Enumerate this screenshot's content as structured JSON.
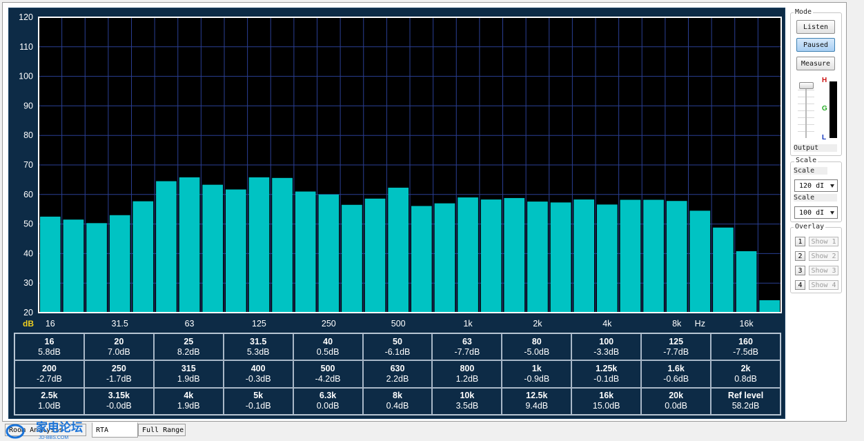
{
  "chart_data": {
    "type": "bar",
    "y_axis": {
      "min": 20,
      "max": 120,
      "ticks": [
        20,
        30,
        40,
        50,
        60,
        70,
        80,
        90,
        100,
        110,
        120
      ]
    },
    "y_unit": "dB",
    "x_unit": "Hz",
    "x_tick_labels": [
      {
        "label": "16",
        "band": 0
      },
      {
        "label": "31.5",
        "band": 3
      },
      {
        "label": "63",
        "band": 6
      },
      {
        "label": "125",
        "band": 9
      },
      {
        "label": "250",
        "band": 12
      },
      {
        "label": "500",
        "band": 15
      },
      {
        "label": "1k",
        "band": 18
      },
      {
        "label": "2k",
        "band": 21
      },
      {
        "label": "4k",
        "band": 24
      },
      {
        "label": "8k",
        "band": 27
      },
      {
        "label": "16k",
        "band": 30
      }
    ],
    "bands": [
      "16",
      "20",
      "25",
      "31.5",
      "40",
      "50",
      "63",
      "80",
      "100",
      "125",
      "160",
      "200",
      "250",
      "315",
      "400",
      "500",
      "630",
      "800",
      "1k",
      "1.25k",
      "1.6k",
      "2k",
      "2.5k",
      "3.15k",
      "4k",
      "5k",
      "6.3k",
      "8k",
      "10k",
      "12.5k",
      "16k",
      "20k"
    ],
    "values": [
      52.5,
      51.5,
      50.3,
      53.0,
      57.7,
      64.5,
      65.8,
      63.3,
      61.7,
      65.8,
      65.6,
      61.0,
      60.0,
      56.5,
      58.6,
      62.3,
      56.1,
      57.0,
      59.0,
      58.3,
      58.8,
      57.6,
      57.3,
      58.3,
      56.6,
      58.2,
      58.2,
      57.8,
      54.5,
      48.8,
      40.8,
      24.2
    ],
    "bar_color": "#00c3c3",
    "plot_bg": "#000000",
    "grid_color": "#2a3f94"
  },
  "table": [
    [
      {
        "f": "16",
        "v": "5.8dB"
      },
      {
        "f": "20",
        "v": "7.0dB"
      },
      {
        "f": "25",
        "v": "8.2dB"
      },
      {
        "f": "31.5",
        "v": "5.3dB"
      },
      {
        "f": "40",
        "v": "0.5dB"
      },
      {
        "f": "50",
        "v": "-6.1dB"
      },
      {
        "f": "63",
        "v": "-7.7dB"
      },
      {
        "f": "80",
        "v": "-5.0dB"
      },
      {
        "f": "100",
        "v": "-3.3dB"
      },
      {
        "f": "125",
        "v": "-7.7dB"
      },
      {
        "f": "160",
        "v": "-7.5dB"
      }
    ],
    [
      {
        "f": "200",
        "v": "-2.7dB"
      },
      {
        "f": "250",
        "v": "-1.7dB"
      },
      {
        "f": "315",
        "v": "1.9dB"
      },
      {
        "f": "400",
        "v": "-0.3dB"
      },
      {
        "f": "500",
        "v": "-4.2dB"
      },
      {
        "f": "630",
        "v": "2.2dB"
      },
      {
        "f": "800",
        "v": "1.2dB"
      },
      {
        "f": "1k",
        "v": "-0.9dB"
      },
      {
        "f": "1.25k",
        "v": "-0.1dB"
      },
      {
        "f": "1.6k",
        "v": "-0.6dB"
      },
      {
        "f": "2k",
        "v": "0.8dB"
      }
    ],
    [
      {
        "f": "2.5k",
        "v": "1.0dB"
      },
      {
        "f": "3.15k",
        "v": "-0.0dB"
      },
      {
        "f": "4k",
        "v": "1.9dB"
      },
      {
        "f": "5k",
        "v": "-0.1dB"
      },
      {
        "f": "6.3k",
        "v": "0.0dB"
      },
      {
        "f": "8k",
        "v": "0.4dB"
      },
      {
        "f": "10k",
        "v": "3.5dB"
      },
      {
        "f": "12.5k",
        "v": "9.4dB"
      },
      {
        "f": "16k",
        "v": "15.0dB"
      },
      {
        "f": "20k",
        "v": "0.0dB"
      },
      {
        "f": "Ref level",
        "v": "58.2dB"
      }
    ]
  ],
  "side": {
    "mode_label": "Mode",
    "buttons": {
      "listen": "Listen",
      "paused": "Paused",
      "measure": "Measure"
    },
    "meter_letters": {
      "h": "H",
      "g": "G",
      "l": "L"
    },
    "output_label": "Output",
    "scale_group_label": "Scale",
    "scale1_label": "Scale",
    "scale1_value": "120 dI",
    "scale2_label": "Scale",
    "scale2_value": "100 dI",
    "overlay_label": "Overlay",
    "overlays": [
      {
        "num": "1",
        "show": "Show 1"
      },
      {
        "num": "2",
        "show": "Show 2"
      },
      {
        "num": "3",
        "show": "Show 3"
      },
      {
        "num": "4",
        "show": "Show 4"
      }
    ]
  },
  "tabs": {
    "room_analysis": "Room Analysis",
    "rta": "RTA",
    "full_range": "Full Range"
  },
  "watermark": {
    "text": "家电论坛",
    "sub": "JD-BBS.COM"
  }
}
